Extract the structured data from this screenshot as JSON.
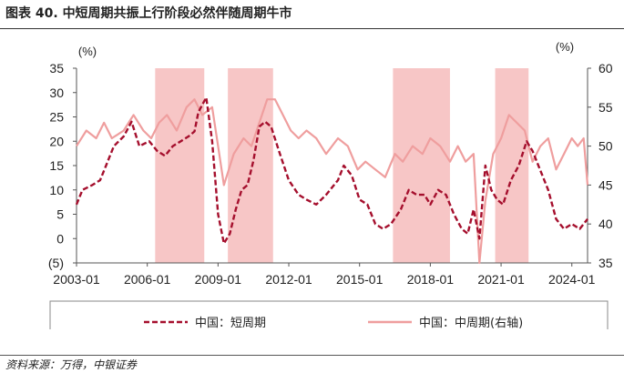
{
  "title": {
    "figure_label": "图表 40.",
    "text": "中短周期共振上行阶段必然伴随周期牛市"
  },
  "source": "资料来源：万得，中银证券",
  "chart_data": {
    "type": "line",
    "left_axis": {
      "unit": "(%)",
      "ylim": [
        -5,
        35
      ],
      "ticks": [
        {
          "value": 35,
          "label": "35"
        },
        {
          "value": 30,
          "label": "30"
        },
        {
          "value": 25,
          "label": "25"
        },
        {
          "value": 20,
          "label": "20"
        },
        {
          "value": 15,
          "label": "15"
        },
        {
          "value": 10,
          "label": "10"
        },
        {
          "value": 5,
          "label": "5"
        },
        {
          "value": 0,
          "label": "0"
        },
        {
          "value": -5,
          "label": "(5)",
          "color": "#d2281e"
        }
      ]
    },
    "right_axis": {
      "unit": "(%)",
      "ylim": [
        35,
        60
      ],
      "ticks": [
        "60",
        "55",
        "50",
        "45",
        "40",
        "35"
      ]
    },
    "x_axis": {
      "range": [
        "2003-01",
        "2024-09"
      ],
      "tick_labels": [
        "2003-01",
        "2006-01",
        "2009-01",
        "2012-01",
        "2015-01",
        "2018-01",
        "2021-01",
        "2024-01"
      ]
    },
    "shaded_periods": [
      {
        "start": "2006-05",
        "end": "2008-06"
      },
      {
        "start": "2009-06",
        "end": "2011-05"
      },
      {
        "start": "2016-06",
        "end": "2018-11"
      },
      {
        "start": "2020-10",
        "end": "2022-03"
      }
    ],
    "series": [
      {
        "name": "中国：短周期",
        "axis": "left",
        "style": "dashed",
        "color": "#a50f2d",
        "points": [
          [
            "2003-01",
            7
          ],
          [
            "2003-04",
            10
          ],
          [
            "2003-09",
            11
          ],
          [
            "2004-01",
            12
          ],
          [
            "2004-04",
            15
          ],
          [
            "2004-08",
            19
          ],
          [
            "2005-01",
            21
          ],
          [
            "2005-05",
            24
          ],
          [
            "2005-09",
            19
          ],
          [
            "2006-02",
            20
          ],
          [
            "2006-06",
            18
          ],
          [
            "2006-10",
            17
          ],
          [
            "2007-02",
            19
          ],
          [
            "2007-06",
            20
          ],
          [
            "2007-10",
            21
          ],
          [
            "2008-01",
            22
          ],
          [
            "2008-03",
            26
          ],
          [
            "2008-07",
            29
          ],
          [
            "2008-10",
            20
          ],
          [
            "2009-01",
            5
          ],
          [
            "2009-04",
            -1
          ],
          [
            "2009-07",
            1
          ],
          [
            "2009-10",
            6
          ],
          [
            "2010-01",
            10
          ],
          [
            "2010-04",
            11
          ],
          [
            "2010-07",
            16
          ],
          [
            "2010-10",
            23
          ],
          [
            "2011-01",
            24
          ],
          [
            "2011-04",
            23
          ],
          [
            "2011-08",
            18
          ],
          [
            "2012-01",
            12
          ],
          [
            "2012-06",
            9
          ],
          [
            "2012-10",
            8
          ],
          [
            "2013-03",
            7
          ],
          [
            "2013-08",
            9
          ],
          [
            "2014-02",
            12
          ],
          [
            "2014-05",
            15
          ],
          [
            "2014-09",
            13
          ],
          [
            "2015-01",
            8
          ],
          [
            "2015-05",
            7
          ],
          [
            "2015-09",
            3
          ],
          [
            "2016-01",
            2
          ],
          [
            "2016-05",
            3
          ],
          [
            "2016-10",
            6
          ],
          [
            "2017-02",
            10
          ],
          [
            "2017-06",
            9
          ],
          [
            "2017-10",
            9
          ],
          [
            "2018-01",
            7
          ],
          [
            "2018-05",
            10
          ],
          [
            "2018-09",
            9
          ],
          [
            "2019-01",
            5
          ],
          [
            "2019-05",
            2
          ],
          [
            "2019-08",
            1
          ],
          [
            "2019-11",
            6
          ],
          [
            "2020-02",
            0
          ],
          [
            "2020-05",
            15
          ],
          [
            "2020-08",
            10
          ],
          [
            "2020-11",
            8
          ],
          [
            "2021-02",
            7
          ],
          [
            "2021-06",
            12
          ],
          [
            "2021-10",
            15
          ],
          [
            "2022-02",
            20
          ],
          [
            "2022-05",
            18
          ],
          [
            "2022-09",
            14
          ],
          [
            "2023-01",
            10
          ],
          [
            "2023-05",
            4
          ],
          [
            "2023-09",
            2
          ],
          [
            "2024-01",
            3
          ],
          [
            "2024-05",
            2
          ],
          [
            "2024-09",
            4
          ]
        ]
      },
      {
        "name": "中国：中周期(右轴)",
        "axis": "right",
        "style": "solid",
        "color": "#ef9e9e",
        "points": [
          [
            "2003-01",
            50
          ],
          [
            "2003-06",
            52
          ],
          [
            "2003-11",
            51
          ],
          [
            "2004-03",
            53
          ],
          [
            "2004-07",
            51
          ],
          [
            "2005-01",
            52
          ],
          [
            "2005-06",
            54
          ],
          [
            "2005-11",
            52
          ],
          [
            "2006-03",
            51
          ],
          [
            "2006-07",
            53
          ],
          [
            "2006-11",
            54
          ],
          [
            "2007-04",
            52
          ],
          [
            "2007-09",
            55
          ],
          [
            "2008-01",
            56
          ],
          [
            "2008-05",
            54
          ],
          [
            "2008-10",
            55
          ],
          [
            "2009-01",
            50
          ],
          [
            "2009-04",
            45
          ],
          [
            "2009-09",
            49
          ],
          [
            "2010-02",
            51
          ],
          [
            "2010-06",
            50
          ],
          [
            "2010-10",
            53
          ],
          [
            "2011-02",
            56
          ],
          [
            "2011-06",
            56
          ],
          [
            "2011-10",
            54
          ],
          [
            "2012-02",
            52
          ],
          [
            "2012-06",
            51
          ],
          [
            "2012-10",
            52
          ],
          [
            "2013-03",
            51
          ],
          [
            "2013-08",
            49
          ],
          [
            "2014-02",
            51
          ],
          [
            "2014-07",
            50
          ],
          [
            "2014-12",
            47
          ],
          [
            "2015-04",
            48
          ],
          [
            "2015-09",
            47
          ],
          [
            "2016-02",
            46
          ],
          [
            "2016-07",
            49
          ],
          [
            "2016-11",
            48
          ],
          [
            "2017-04",
            50
          ],
          [
            "2017-09",
            49
          ],
          [
            "2018-01",
            51
          ],
          [
            "2018-06",
            50
          ],
          [
            "2018-11",
            48
          ],
          [
            "2019-03",
            50
          ],
          [
            "2019-07",
            48
          ],
          [
            "2019-11",
            49
          ],
          [
            "2020-02",
            35
          ],
          [
            "2020-05",
            43
          ],
          [
            "2020-09",
            49
          ],
          [
            "2021-01",
            51
          ],
          [
            "2021-05",
            54
          ],
          [
            "2021-09",
            53
          ],
          [
            "2022-01",
            52
          ],
          [
            "2022-05",
            48
          ],
          [
            "2022-09",
            50
          ],
          [
            "2023-01",
            51
          ],
          [
            "2023-05",
            47
          ],
          [
            "2023-09",
            49
          ],
          [
            "2024-01",
            51
          ],
          [
            "2024-04",
            50
          ],
          [
            "2024-07",
            51
          ],
          [
            "2024-09",
            45
          ]
        ]
      }
    ],
    "legend_position": "bottom"
  },
  "colors": {
    "band": "#f7c6c6",
    "axis": "#555555",
    "accent_red": "#d2281e"
  }
}
